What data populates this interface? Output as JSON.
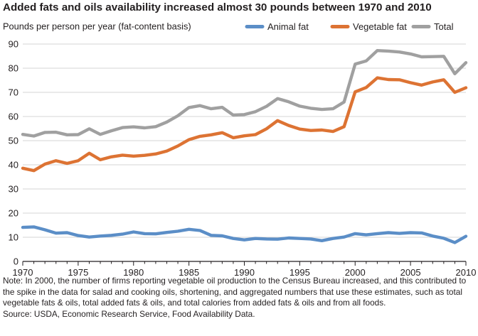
{
  "chart_data": {
    "type": "line",
    "title": "Added fats and oils availability increased almost 30 pounds between 1970 and 2010",
    "ylabel": "Pounds per person per year (fat-content basis)",
    "xlabel": "",
    "xlim": [
      1970,
      2010
    ],
    "ylim": [
      0,
      90
    ],
    "x_ticks": [
      1970,
      1975,
      1980,
      1985,
      1990,
      1995,
      2000,
      2005,
      2010
    ],
    "y_ticks": [
      0,
      10,
      20,
      30,
      40,
      50,
      60,
      70,
      80,
      90
    ],
    "grid": true,
    "legend_position": "top-right",
    "x": [
      1970,
      1971,
      1972,
      1973,
      1974,
      1975,
      1976,
      1977,
      1978,
      1979,
      1980,
      1981,
      1982,
      1983,
      1984,
      1985,
      1986,
      1987,
      1988,
      1989,
      1990,
      1991,
      1992,
      1993,
      1994,
      1995,
      1996,
      1997,
      1998,
      1999,
      2000,
      2001,
      2002,
      2003,
      2004,
      2005,
      2006,
      2007,
      2008,
      2009,
      2010
    ],
    "series": [
      {
        "name": "Animal fat",
        "color": "#5b8ec7",
        "values": [
          14.1,
          14.3,
          13.1,
          11.7,
          11.9,
          10.7,
          10.1,
          10.5,
          10.8,
          11.3,
          12.2,
          11.5,
          11.4,
          12.0,
          12.5,
          13.3,
          12.8,
          10.8,
          10.6,
          9.5,
          8.9,
          9.5,
          9.3,
          9.2,
          9.7,
          9.5,
          9.3,
          8.6,
          9.5,
          10.1,
          11.5,
          11.0,
          11.5,
          11.9,
          11.6,
          11.9,
          11.8,
          10.5,
          9.6,
          7.8,
          10.4
        ]
      },
      {
        "name": "Vegetable fat",
        "color": "#dd7333",
        "values": [
          38.6,
          37.6,
          40.3,
          41.7,
          40.6,
          41.7,
          44.8,
          42.1,
          43.3,
          44.0,
          43.6,
          43.9,
          44.5,
          45.7,
          47.8,
          50.4,
          51.8,
          52.4,
          53.3,
          51.2,
          52.0,
          52.5,
          54.9,
          58.3,
          56.3,
          54.8,
          54.2,
          54.4,
          53.8,
          55.8,
          70.2,
          72.0,
          76.0,
          75.3,
          75.2,
          74.0,
          73.0,
          74.3,
          75.2,
          70.0,
          71.9
        ]
      },
      {
        "name": "Total",
        "color": "#a0a0a0",
        "values": [
          52.6,
          51.9,
          53.4,
          53.5,
          52.4,
          52.5,
          54.9,
          52.6,
          54.1,
          55.4,
          55.7,
          55.3,
          55.8,
          57.7,
          60.3,
          63.7,
          64.5,
          63.2,
          63.8,
          60.6,
          60.8,
          62.0,
          64.2,
          67.4,
          66.1,
          64.3,
          63.4,
          62.9,
          63.2,
          66.0,
          81.7,
          83.0,
          87.3,
          87.1,
          86.7,
          85.9,
          84.7,
          84.8,
          84.9,
          77.7,
          82.3
        ]
      }
    ]
  },
  "note": "Note: In 2000, the number of firms reporting vegetable oil production to the Census Bureau increased, and this contributed to the spike in the data for salad and cooking oils, shortening, and aggregated numbers that use these estimates, such as total vegetable fats & oils, total added fats & oils, and total calories from added fats & oils and from all foods.",
  "source": "Source: USDA, Economic Research Service, Food Availability Data."
}
